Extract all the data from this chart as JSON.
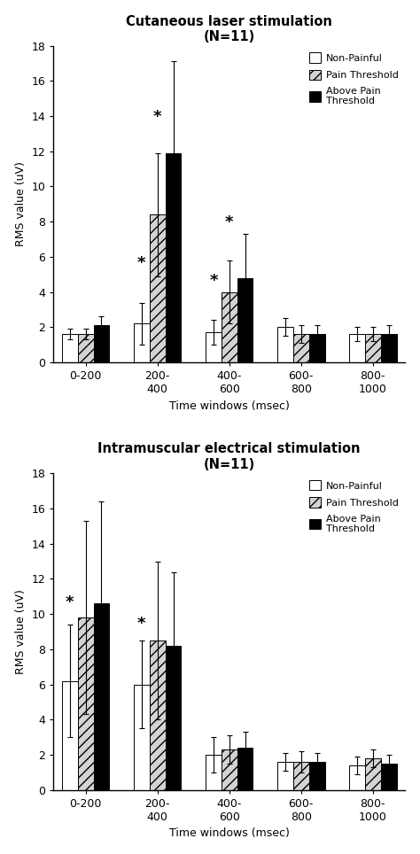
{
  "chart1": {
    "title": "Cutaneous laser stimulation\n(N=11)",
    "categories": [
      "0-200",
      "200-\n400",
      "400-\n600",
      "600-\n800",
      "800-\n1000"
    ],
    "non_painful": [
      1.6,
      2.2,
      1.7,
      2.0,
      1.6
    ],
    "pain_threshold": [
      1.6,
      8.4,
      4.0,
      1.6,
      1.6
    ],
    "above_threshold": [
      2.1,
      11.9,
      4.8,
      1.6,
      1.6
    ],
    "non_painful_err": [
      0.3,
      1.2,
      0.7,
      0.5,
      0.4
    ],
    "pain_threshold_err": [
      0.3,
      3.5,
      1.8,
      0.5,
      0.4
    ],
    "above_threshold_err": [
      0.5,
      5.2,
      2.5,
      0.5,
      0.5
    ],
    "star_positions": [
      {
        "group": 1,
        "bar": 0,
        "y": 5.2
      },
      {
        "group": 1,
        "bar": 1,
        "y": 13.5
      },
      {
        "group": 2,
        "bar": 0,
        "y": 4.2
      },
      {
        "group": 2,
        "bar": 1,
        "y": 7.5
      }
    ]
  },
  "chart2": {
    "title": "Intramuscular electrical stimulation\n(N=11)",
    "categories": [
      "0-200",
      "200-\n400",
      "400-\n600",
      "600-\n800",
      "800-\n1000"
    ],
    "non_painful": [
      6.2,
      6.0,
      2.0,
      1.6,
      1.4
    ],
    "pain_threshold": [
      9.8,
      8.5,
      2.3,
      1.6,
      1.8
    ],
    "above_threshold": [
      10.6,
      8.2,
      2.4,
      1.6,
      1.5
    ],
    "non_painful_err": [
      3.2,
      2.5,
      1.0,
      0.5,
      0.5
    ],
    "pain_threshold_err": [
      5.5,
      4.5,
      0.8,
      0.6,
      0.5
    ],
    "above_threshold_err": [
      5.8,
      4.2,
      0.9,
      0.5,
      0.5
    ],
    "star_positions": [
      {
        "group": 0,
        "bar": 0,
        "y": 10.2
      },
      {
        "group": 1,
        "bar": 0,
        "y": 9.0
      }
    ]
  },
  "ylabel": "RMS value (uV)",
  "xlabel": "Time windows (msec)",
  "ylim": [
    0,
    18
  ],
  "yticks": [
    0,
    2,
    4,
    6,
    8,
    10,
    12,
    14,
    16,
    18
  ],
  "bar_colors": [
    "white",
    "lightgray",
    "black"
  ],
  "hatch_patterns": [
    "",
    "///",
    ""
  ],
  "legend_labels": [
    "Non-Painful",
    "Pain Threshold",
    "Above Pain\nThreshold"
  ],
  "bar_width": 0.22,
  "edgecolor": "black"
}
